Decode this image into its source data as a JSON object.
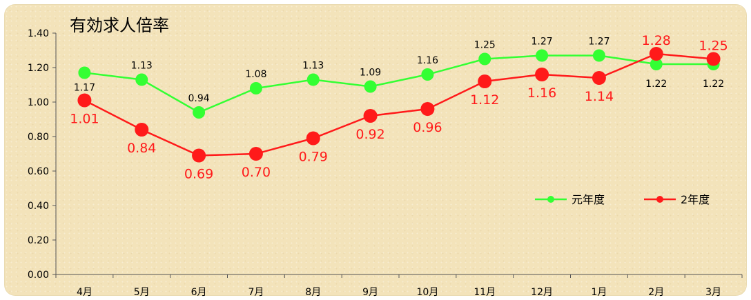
{
  "chart_data": {
    "type": "line",
    "title": "有効求人倍率",
    "categories": [
      "4月",
      "5月",
      "6月",
      "7月",
      "8月",
      "9月",
      "10月",
      "11月",
      "12月",
      "1月",
      "2月",
      "3月"
    ],
    "ylim": [
      0,
      1.4
    ],
    "yticks": [
      "0.00",
      "0.20",
      "0.40",
      "0.60",
      "0.80",
      "1.00",
      "1.20",
      "1.40"
    ],
    "grid": false,
    "legend_position": "right",
    "series": [
      {
        "name": "元年度",
        "color": "#33ff33",
        "values": [
          1.17,
          1.13,
          0.94,
          1.08,
          1.13,
          1.09,
          1.16,
          1.25,
          1.27,
          1.27,
          1.22,
          1.22
        ],
        "labels": [
          "1.17",
          "1.13",
          "0.94",
          "1.08",
          "1.13",
          "1.09",
          "1.16",
          "1.25",
          "1.27",
          "1.27",
          "1.22",
          "1.22"
        ]
      },
      {
        "name": "2年度",
        "color": "#ff1a1a",
        "values": [
          1.01,
          0.84,
          0.69,
          0.7,
          0.79,
          0.92,
          0.96,
          1.12,
          1.16,
          1.14,
          1.28,
          1.25
        ],
        "labels": [
          "1.01",
          "0.84",
          "0.69",
          "0.70",
          "0.79",
          "0.92",
          "0.96",
          "1.12",
          "1.16",
          "1.14",
          "1.28",
          "1.25"
        ]
      }
    ]
  }
}
